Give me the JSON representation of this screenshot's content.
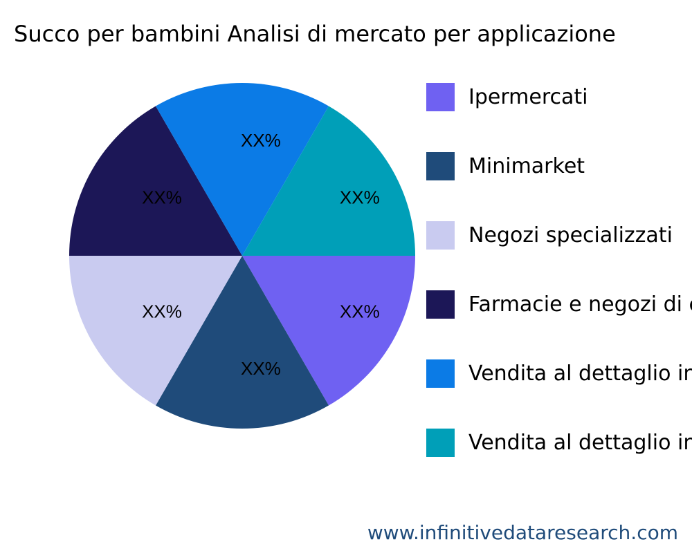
{
  "chart_data": {
    "type": "pie",
    "title": "Succo per bambini Analisi di mercato per applicazione",
    "categories": [
      "Ipermercati",
      "Minimarket",
      "Negozi specializzati",
      "Farmacie e negozi di c",
      "Vendita al dettaglio in",
      "Vendita al dettaglio in"
    ],
    "values": [
      16.67,
      16.67,
      16.67,
      16.67,
      16.67,
      16.67
    ],
    "data_labels": [
      "XX%",
      "XX%",
      "XX%",
      "XX%",
      "XX%",
      "XX%"
    ],
    "colors": [
      "#6f61f2",
      "#1f4b7a",
      "#c9cbf0",
      "#1c1757",
      "#0b7be6",
      "#009fb8"
    ],
    "legend_placement": "right"
  },
  "footer": {
    "watermark": "www.infinitivedataresearch.com"
  }
}
